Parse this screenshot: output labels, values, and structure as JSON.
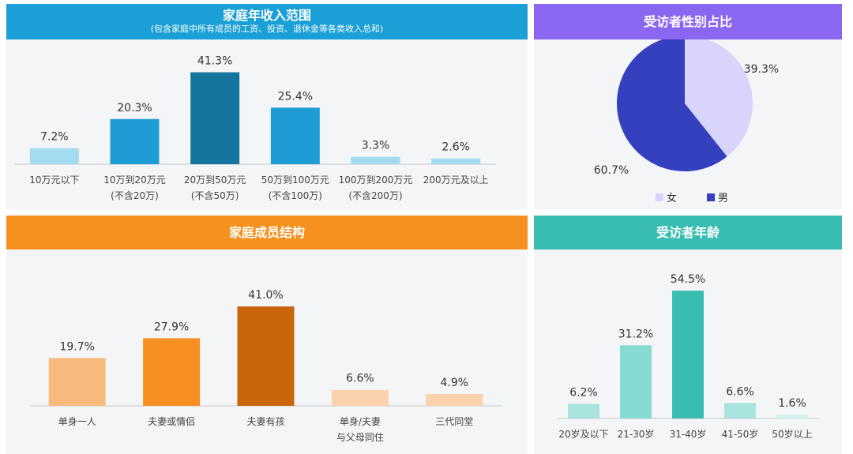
{
  "income": {
    "title": "家庭年收入范围",
    "subtitle": "(包含家庭中所有成员的工资、投资、退休金等各类收入总和)",
    "header_color": "#1a9fd6"
  },
  "gender": {
    "title": "受访者性别占比",
    "header_color": "#8b66f0"
  },
  "family": {
    "title": "家庭成员结构",
    "header_color": "#f6901e"
  },
  "age": {
    "title": "受访者年龄",
    "header_color": "#39bdb3"
  },
  "chart_data": [
    {
      "id": "income",
      "type": "bar",
      "categories": [
        [
          "10万元以下"
        ],
        [
          "10万到20万元",
          "(不含20万)"
        ],
        [
          "20万到50万元",
          "(不含50万)"
        ],
        [
          "50万到100万元",
          "(不含100万)"
        ],
        [
          "100万到200万元",
          "(不含200万)"
        ],
        [
          "200万元及以上"
        ]
      ],
      "values": [
        7.2,
        20.3,
        41.3,
        25.4,
        3.3,
        2.6
      ],
      "labels": [
        "7.2%",
        "20.3%",
        "41.3%",
        "25.4%",
        "3.3%",
        "2.6%"
      ],
      "colors": [
        "#a3dbf0",
        "#1e9cd6",
        "#16759e",
        "#1e9cd6",
        "#a3dbf0",
        "#a3dbf0"
      ]
    },
    {
      "id": "gender",
      "type": "pie",
      "slices": [
        {
          "name": "女",
          "value": 39.3,
          "label": "39.3%",
          "color": "#d9d4fb"
        },
        {
          "name": "男",
          "value": 60.7,
          "label": "60.7%",
          "color": "#3440bd"
        }
      ]
    },
    {
      "id": "family",
      "type": "bar",
      "categories": [
        [
          "单身一人"
        ],
        [
          "夫妻或情侣"
        ],
        [
          "夫妻有孩"
        ],
        [
          "单身/夫妻",
          "与父母同住"
        ],
        [
          "三代同堂"
        ]
      ],
      "values": [
        19.7,
        27.9,
        41.0,
        6.6,
        4.9
      ],
      "labels": [
        "19.7%",
        "27.9%",
        "41.0%",
        "6.6%",
        "4.9%"
      ],
      "colors": [
        "#f9bb7d",
        "#f78e22",
        "#c9660b",
        "#fbd2ab",
        "#fbd2ab"
      ]
    },
    {
      "id": "age",
      "type": "bar",
      "categories": [
        [
          "20岁及以下"
        ],
        [
          "21-30岁"
        ],
        [
          "31-40岁"
        ],
        [
          "41-50岁"
        ],
        [
          "50岁以上"
        ]
      ],
      "values": [
        6.2,
        31.2,
        54.5,
        6.6,
        1.6
      ],
      "labels": [
        "6.2%",
        "31.2%",
        "54.5%",
        "6.6%",
        "1.6%"
      ],
      "colors": [
        "#a9e4df",
        "#86dad4",
        "#39bdb3",
        "#a9e4df",
        "#d2f1ee"
      ]
    }
  ]
}
